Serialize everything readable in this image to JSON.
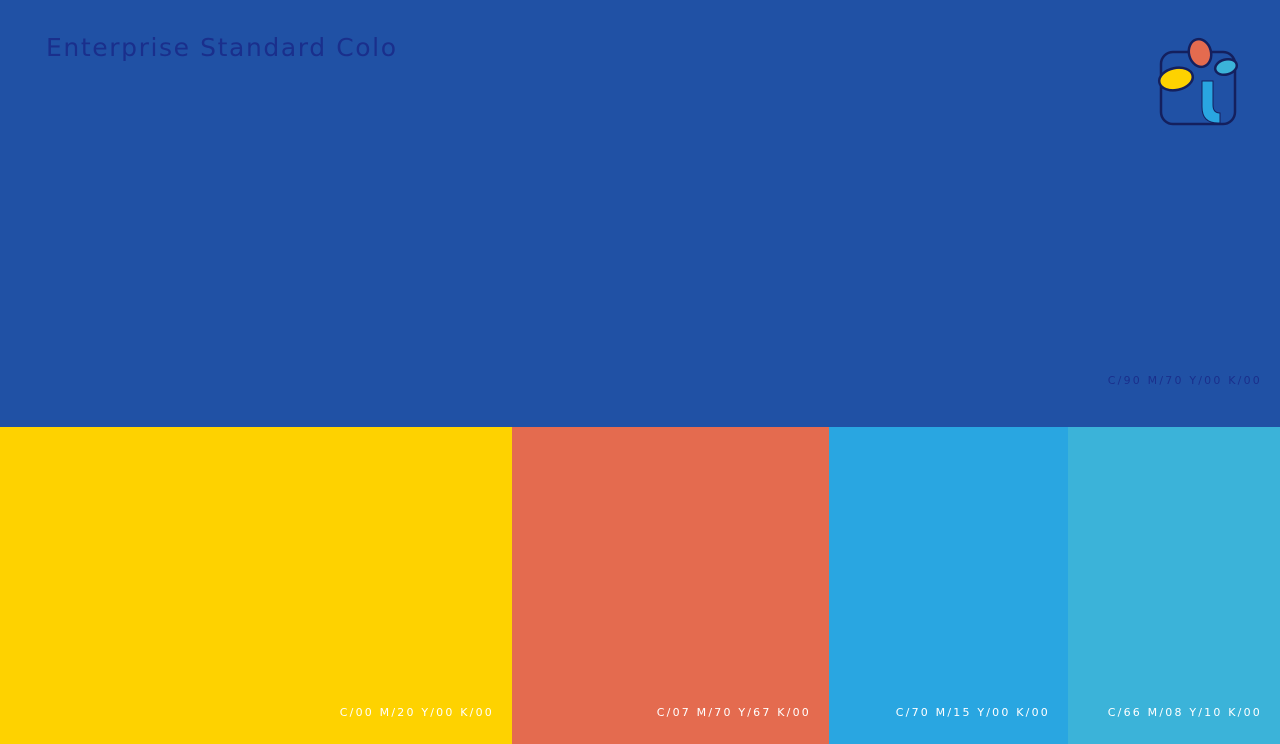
{
  "title": "Enterprise Standard Colo",
  "primary": {
    "color": "#2051A5",
    "code": "C/90 M/70 Y/00 K/00"
  },
  "logo": {
    "icon": "brand-logo-icon",
    "colors": [
      "#FED200",
      "#E46B4F",
      "#29A6E1",
      "#3BB3D9",
      "#14205E"
    ]
  },
  "swatches": [
    {
      "color": "#FED200",
      "code": "C/00 M/20 Y/00 K/00"
    },
    {
      "color": "#E46B4F",
      "code": "C/07 M/70 Y/67 K/00"
    },
    {
      "color": "#29A6E1",
      "code": "C/70 M/15 Y/00 K/00"
    },
    {
      "color": "#3BB3D9",
      "code": "C/66 M/08 Y/10 K/00"
    }
  ]
}
